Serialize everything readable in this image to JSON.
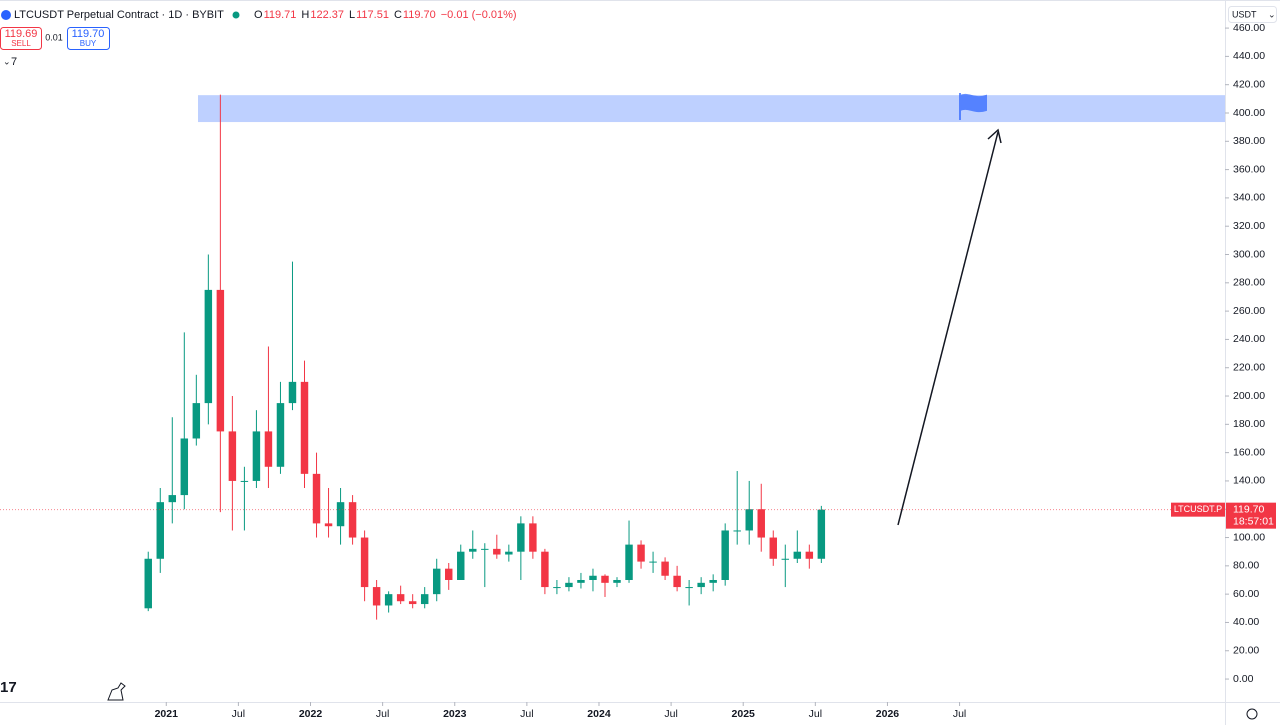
{
  "header": {
    "symbol": "LTCUSDT Perpetual Contract · 1D · BYBIT",
    "ohlc": [
      {
        "label": "O",
        "value": "119.71"
      },
      {
        "label": "H",
        "value": "122.37"
      },
      {
        "label": "L",
        "value": "117.51"
      },
      {
        "label": "C",
        "value": "119.70"
      }
    ],
    "change": "−0.01 (−0.01%)",
    "sell": {
      "price": "119.69",
      "label": "SELL"
    },
    "spread": "0.01",
    "buy": {
      "price": "119.70",
      "label": "BUY"
    },
    "indicator_count": "7",
    "currency": "USDT"
  },
  "price_tag": {
    "symbol": "LTCUSDT.P",
    "price": "119.70",
    "countdown": "18:57:01"
  },
  "chart_data": {
    "type": "candlestick",
    "up_color": "#089981",
    "down_color": "#f23645",
    "x": [
      "2020-11",
      "2020-12",
      "2021-01",
      "2021-02",
      "2021-03",
      "2021-04",
      "2021-05",
      "2021-06",
      "2021-07",
      "2021-08",
      "2021-09",
      "2021-10",
      "2021-11",
      "2021-12",
      "2022-01",
      "2022-02",
      "2022-03",
      "2022-04",
      "2022-05",
      "2022-06",
      "2022-07",
      "2022-08",
      "2022-09",
      "2022-10",
      "2022-11",
      "2022-12",
      "2023-01",
      "2023-02",
      "2023-03",
      "2023-04",
      "2023-05",
      "2023-06",
      "2023-07",
      "2023-08",
      "2023-09",
      "2023-10",
      "2023-11",
      "2023-12",
      "2024-01",
      "2024-02",
      "2024-03",
      "2024-04",
      "2024-05",
      "2024-06",
      "2024-07",
      "2024-08",
      "2024-09",
      "2024-10",
      "2024-11",
      "2024-12",
      "2025-01",
      "2025-02",
      "2025-03",
      "2025-04",
      "2025-05",
      "2025-06",
      "2025-07"
    ],
    "open": [
      50,
      85,
      125,
      130,
      170,
      195,
      275,
      175,
      140,
      140,
      175,
      150,
      195,
      210,
      145,
      110,
      108,
      125,
      100,
      65,
      52,
      60,
      55,
      53,
      60,
      78,
      70,
      90,
      92,
      92,
      88,
      90,
      110,
      90,
      65,
      65,
      68,
      70,
      73,
      68,
      70,
      95,
      83,
      83,
      73,
      65,
      65,
      68,
      70,
      105,
      105,
      120,
      100,
      85,
      85,
      90,
      85
    ],
    "high": [
      90,
      135,
      185,
      245,
      215,
      300,
      413,
      200,
      150,
      190,
      235,
      210,
      295,
      225,
      160,
      135,
      135,
      130,
      105,
      70,
      62,
      66,
      60,
      65,
      85,
      82,
      95,
      105,
      96,
      102,
      95,
      115,
      115,
      92,
      70,
      72,
      75,
      78,
      74,
      72,
      112,
      98,
      90,
      86,
      80,
      70,
      72,
      74,
      110,
      147,
      140,
      138,
      105,
      95,
      105,
      95,
      122.37
    ],
    "low": [
      48,
      75,
      110,
      120,
      165,
      180,
      118,
      105,
      105,
      135,
      135,
      145,
      190,
      135,
      100,
      100,
      95,
      95,
      55,
      42,
      47,
      53,
      50,
      50,
      55,
      63,
      70,
      85,
      65,
      85,
      83,
      70,
      85,
      60,
      60,
      62,
      64,
      62,
      58,
      65,
      68,
      78,
      75,
      70,
      62,
      52,
      60,
      62,
      66,
      95,
      95,
      90,
      80,
      65,
      82,
      78,
      82
    ],
    "close": [
      85,
      125,
      130,
      170,
      195,
      275,
      175,
      140,
      140,
      175,
      150,
      195,
      210,
      145,
      110,
      108,
      125,
      100,
      65,
      52,
      60,
      55,
      53,
      60,
      78,
      70,
      90,
      92,
      92,
      88,
      90,
      110,
      90,
      65,
      65,
      68,
      70,
      73,
      68,
      70,
      95,
      83,
      83,
      73,
      65,
      65,
      68,
      70,
      105,
      105,
      120,
      100,
      85,
      85,
      90,
      85,
      119.7
    ],
    "xlim": [
      "2019-11",
      "2028-05"
    ],
    "xticks": [
      {
        "value": "2021-01",
        "label": "2021"
      },
      {
        "value": "2021-07",
        "label": "Jul"
      },
      {
        "value": "2022-01",
        "label": "2022"
      },
      {
        "value": "2022-07",
        "label": "Jul"
      },
      {
        "value": "2023-01",
        "label": "2023"
      },
      {
        "value": "2023-07",
        "label": "Jul"
      },
      {
        "value": "2024-01",
        "label": "2024"
      },
      {
        "value": "2024-07",
        "label": "Jul"
      },
      {
        "value": "2025-01",
        "label": "2025"
      },
      {
        "value": "2025-07",
        "label": "Jul"
      },
      {
        "value": "2026-01",
        "label": "2026"
      },
      {
        "value": "2026-07",
        "label": "Jul"
      }
    ],
    "ylim": [
      -14.8,
      464.3
    ],
    "yticks": [
      {
        "value": 0,
        "label": "0.00"
      },
      {
        "value": 20,
        "label": "20.00"
      },
      {
        "value": 40,
        "label": "40.00"
      },
      {
        "value": 60,
        "label": "60.00"
      },
      {
        "value": 80,
        "label": "80.00"
      },
      {
        "value": 100,
        "label": "100.00"
      },
      {
        "value": 120,
        "label": "120.00"
      },
      {
        "value": 140,
        "label": "140.00"
      },
      {
        "value": 160,
        "label": "160.00"
      },
      {
        "value": 180,
        "label": "180.00"
      },
      {
        "value": 200,
        "label": "200.00"
      },
      {
        "value": 220,
        "label": "220.00"
      },
      {
        "value": 240,
        "label": "240.00"
      },
      {
        "value": 260,
        "label": "260.00"
      },
      {
        "value": 280,
        "label": "280.00"
      },
      {
        "value": 300,
        "label": "300.00"
      },
      {
        "value": 320,
        "label": "320.00"
      },
      {
        "value": 340,
        "label": "340.00"
      },
      {
        "value": 360,
        "label": "360.00"
      },
      {
        "value": 380,
        "label": "380.00"
      },
      {
        "value": 400,
        "label": "400.00"
      },
      {
        "value": 420,
        "label": "420.00"
      },
      {
        "value": 440,
        "label": "440.00"
      },
      {
        "value": 460,
        "label": "460.00"
      }
    ],
    "zone": [
      393.6,
      412.6
    ]
  }
}
